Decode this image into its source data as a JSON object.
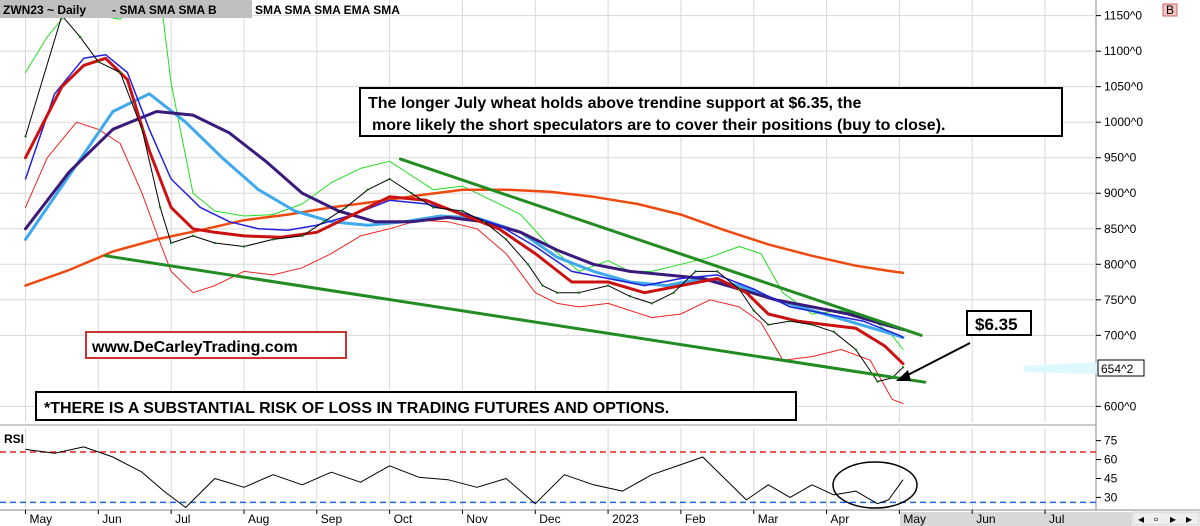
{
  "header": {
    "symbol_label": "ZWN23 ~ Daily",
    "indicator_faded": "- SMA SMA SMA B",
    "indicator_list": "SMA SMA SMA EMA SMA",
    "corner_badge": "B"
  },
  "annotations": {
    "main_line1": "The longer July wheat holds above trendine support at $6.35, the",
    "main_line2": "more likely the short speculators are to cover their positions (buy to close).",
    "support_callout": "$6.35",
    "website": "www.DeCarleyTrading.com",
    "risk_disclaimer": "*THERE IS A SUBSTANTIAL RISK OF LOSS IN TRADING FUTURES AND OPTIONS."
  },
  "chart_data": [
    {
      "type": "line",
      "title": "ZWN23 ~ Daily",
      "y_ticks": [
        "1150^0",
        "1100^0",
        "1050^0",
        "1000^0",
        "950^0",
        "900^0",
        "850^0",
        "800^0",
        "750^0",
        "700^0",
        "600^0"
      ],
      "y_tick_values": [
        1150,
        1100,
        1050,
        1000,
        950,
        900,
        850,
        800,
        750,
        700,
        600
      ],
      "ylim": [
        578,
        1172
      ],
      "x_ticks": [
        "May",
        "Jun",
        "Jul",
        "Aug",
        "Sep",
        "Oct",
        "Nov",
        "Dec",
        "2023",
        "Feb",
        "Mar",
        "Apr",
        "May",
        "Jun",
        "Jul"
      ],
      "x_tick_positions": [
        0,
        1,
        2,
        3,
        4,
        5,
        6,
        7,
        8,
        9,
        10,
        11,
        12,
        13,
        14
      ],
      "xlim": [
        -0.35,
        14.7
      ],
      "last_price_label": "654^2",
      "last_price": 654.2,
      "grid": true,
      "colors": {
        "price": "#000000",
        "sma_fast_red": "#cc1111",
        "sma_mid_blue": "#2222dd",
        "sma_light_blue": "#3fa9ee",
        "sma_purple": "#3a1a7a",
        "sma_orange": "#ee4a10",
        "band": "#22dd22",
        "lower_band": "#ee2222",
        "trendline": "#228b22"
      },
      "series": [
        {
          "key": "price",
          "x": [
            0,
            0.5,
            0.75,
            1,
            1.3,
            1.6,
            1.85,
            2,
            2.3,
            2.6,
            3,
            3.4,
            3.8,
            4.1,
            4.4,
            4.7,
            5,
            5.3,
            5.6,
            6,
            6.3,
            6.6,
            6.9,
            7.1,
            7.3,
            7.6,
            8,
            8.3,
            8.6,
            8.9,
            9.2,
            9.5,
            9.8,
            10,
            10.2,
            10.5,
            10.8,
            11.1,
            11.4,
            11.7,
            11.9,
            12.05
          ],
          "values": [
            980,
            1150,
            1120,
            1085,
            1070,
            990,
            880,
            830,
            840,
            830,
            825,
            835,
            840,
            860,
            880,
            905,
            920,
            900,
            880,
            875,
            860,
            835,
            800,
            770,
            760,
            760,
            770,
            755,
            745,
            760,
            790,
            790,
            765,
            735,
            715,
            720,
            715,
            705,
            680,
            635,
            640,
            655
          ]
        },
        {
          "key": "sma_fast_red",
          "x": [
            0,
            0.5,
            0.8,
            1.1,
            1.4,
            1.7,
            2,
            2.3,
            2.6,
            3,
            3.5,
            4,
            4.5,
            5,
            5.5,
            6,
            6.5,
            7,
            7.5,
            8,
            8.5,
            9,
            9.5,
            9.9,
            10.2,
            10.6,
            11,
            11.4,
            11.8,
            12.05
          ],
          "values": [
            950,
            1050,
            1080,
            1090,
            1060,
            960,
            880,
            850,
            845,
            840,
            838,
            845,
            870,
            895,
            890,
            870,
            850,
            815,
            775,
            775,
            760,
            770,
            780,
            760,
            730,
            720,
            715,
            710,
            685,
            660
          ]
        },
        {
          "key": "sma_mid_blue",
          "x": [
            0,
            0.4,
            0.8,
            1.1,
            1.4,
            1.7,
            2,
            2.4,
            2.8,
            3.2,
            3.6,
            4,
            4.5,
            5,
            5.5,
            6,
            6.5,
            7,
            7.5,
            8,
            8.5,
            9,
            9.5,
            10,
            10.5,
            11,
            11.5,
            12,
            12.05
          ],
          "values": [
            920,
            1040,
            1090,
            1095,
            1070,
            990,
            920,
            880,
            860,
            850,
            848,
            855,
            870,
            890,
            885,
            872,
            855,
            825,
            790,
            780,
            770,
            780,
            785,
            765,
            740,
            730,
            720,
            700,
            697
          ]
        },
        {
          "key": "sma_light_blue",
          "x": [
            0,
            0.6,
            1.2,
            1.7,
            2.2,
            2.7,
            3.2,
            3.7,
            4.2,
            4.7,
            5.2,
            5.7,
            6.2,
            6.8,
            7.3,
            7.8,
            8.3,
            8.8,
            9.3,
            9.8,
            10.3,
            10.8,
            11.3,
            11.8,
            12.05
          ],
          "values": [
            835,
            925,
            1015,
            1040,
            1000,
            950,
            905,
            875,
            860,
            855,
            860,
            868,
            865,
            845,
            810,
            790,
            775,
            770,
            780,
            770,
            750,
            735,
            720,
            705,
            697
          ]
        },
        {
          "key": "sma_purple",
          "x": [
            0,
            0.6,
            1.2,
            1.8,
            2.3,
            2.8,
            3.3,
            3.8,
            4.3,
            4.8,
            5.3,
            5.8,
            6.3,
            6.8,
            7.3,
            7.8,
            8.3,
            8.8,
            9.3,
            9.8,
            10.3,
            10.8,
            11.3,
            11.8,
            12.05
          ],
          "values": [
            850,
            930,
            990,
            1015,
            1010,
            985,
            945,
            900,
            875,
            860,
            860,
            866,
            860,
            845,
            820,
            800,
            790,
            785,
            780,
            765,
            750,
            740,
            730,
            715,
            708
          ]
        },
        {
          "key": "sma_orange",
          "x": [
            0,
            0.6,
            1.2,
            1.8,
            2.4,
            3,
            3.6,
            4.2,
            4.8,
            5.4,
            6,
            6.6,
            7.2,
            7.8,
            8.4,
            9,
            9.6,
            10.2,
            10.8,
            11.4,
            11.9,
            12.05
          ],
          "values": [
            770,
            792,
            818,
            835,
            848,
            862,
            870,
            880,
            888,
            897,
            905,
            905,
            902,
            895,
            885,
            870,
            848,
            828,
            812,
            798,
            790,
            788
          ]
        },
        {
          "key": "band_upper",
          "x": [
            0,
            0.3,
            0.7,
            1,
            1.3,
            1.6,
            1.85,
            2,
            2.3,
            2.6,
            3,
            3.4,
            3.8,
            4.2,
            4.6,
            5,
            5.3,
            5.6,
            6,
            6.4,
            6.8,
            7.2,
            7.6,
            8,
            8.3,
            8.6,
            9,
            9.4,
            9.8,
            10.1,
            10.4,
            10.8,
            11.2,
            11.6,
            11.9,
            12.05
          ],
          "values": [
            1070,
            1120,
            1170,
            1150,
            1145,
            1180,
            1180,
            1055,
            900,
            875,
            868,
            870,
            885,
            915,
            935,
            945,
            925,
            905,
            910,
            890,
            870,
            825,
            790,
            805,
            790,
            790,
            800,
            810,
            825,
            815,
            760,
            730,
            735,
            725,
            700,
            680
          ]
        },
        {
          "key": "band_lower",
          "x": [
            0,
            0.3,
            0.7,
            1,
            1.3,
            1.6,
            1.85,
            2,
            2.3,
            2.6,
            3,
            3.4,
            3.8,
            4.2,
            4.6,
            5,
            5.4,
            5.8,
            6.2,
            6.6,
            7,
            7.3,
            7.6,
            8,
            8.3,
            8.6,
            9,
            9.4,
            9.8,
            10.1,
            10.4,
            10.8,
            11.2,
            11.6,
            11.9,
            12.05
          ],
          "values": [
            880,
            950,
            1000,
            990,
            970,
            900,
            830,
            790,
            760,
            770,
            790,
            785,
            795,
            815,
            840,
            850,
            862,
            860,
            850,
            815,
            760,
            745,
            740,
            745,
            735,
            725,
            730,
            750,
            740,
            718,
            665,
            670,
            680,
            665,
            610,
            604
          ]
        },
        {
          "key": "trend_upper",
          "x": [
            5.15,
            12.3
          ],
          "values": [
            948,
            700
          ]
        },
        {
          "key": "trend_lower",
          "x": [
            1.1,
            12.35
          ],
          "values": [
            812,
            634
          ]
        }
      ]
    },
    {
      "type": "line",
      "title": "RSI",
      "y_ticks": [
        "75",
        "60",
        "45",
        "30"
      ],
      "y_tick_values": [
        75,
        60,
        45,
        30
      ],
      "ylim": [
        20,
        85
      ],
      "xlim": [
        -0.35,
        14.7
      ],
      "grid": true,
      "levels": [
        66,
        26
      ],
      "level_colors": [
        "#ee2222",
        "#2266dd"
      ],
      "series": [
        {
          "key": "rsi",
          "x": [
            0,
            0.4,
            0.8,
            1.2,
            1.6,
            1.9,
            2.2,
            2.6,
            3,
            3.4,
            3.8,
            4.2,
            4.6,
            5,
            5.4,
            5.8,
            6.2,
            6.6,
            7,
            7.4,
            7.8,
            8.2,
            8.6,
            9,
            9.3,
            9.6,
            9.9,
            10.2,
            10.5,
            10.8,
            11.1,
            11.4,
            11.7,
            11.85,
            12,
            12.05
          ],
          "values": [
            68,
            65,
            70,
            62,
            50,
            35,
            22,
            45,
            38,
            48,
            40,
            50,
            42,
            55,
            46,
            44,
            38,
            45,
            25,
            48,
            40,
            35,
            48,
            56,
            62,
            45,
            28,
            40,
            30,
            40,
            32,
            35,
            25,
            28,
            40,
            44
          ]
        }
      ]
    }
  ]
}
